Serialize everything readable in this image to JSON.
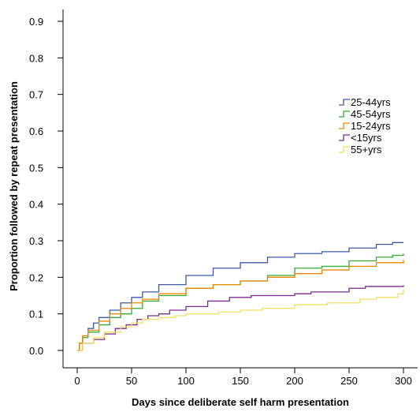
{
  "chart_data": {
    "type": "line",
    "step": true,
    "xlabel": "Days since deliberate self harm presentation",
    "ylabel": "Proportion followed by repeat presentation",
    "xlim": [
      0,
      300
    ],
    "ylim": [
      0,
      0.9
    ],
    "x_ticks": [
      0,
      50,
      100,
      150,
      200,
      250,
      300
    ],
    "y_ticks": [
      0.0,
      0.1,
      0.2,
      0.3,
      0.4,
      0.5,
      0.6,
      0.7,
      0.8,
      0.9
    ],
    "y_tick_labels": [
      "0.0",
      "0.1",
      "0.2",
      "0.3",
      "0.4",
      "0.5",
      "0.6",
      "0.7",
      "0.8",
      "0.9"
    ],
    "grid": false,
    "legend_position": "right",
    "series": [
      {
        "name": "25-44yrs",
        "color": "#3b5ba5",
        "x": [
          0,
          2,
          5,
          10,
          15,
          20,
          30,
          40,
          50,
          60,
          75,
          100,
          125,
          150,
          175,
          200,
          225,
          250,
          275,
          290,
          300
        ],
        "y": [
          0.0,
          0.02,
          0.04,
          0.06,
          0.075,
          0.09,
          0.11,
          0.13,
          0.145,
          0.16,
          0.18,
          0.205,
          0.225,
          0.24,
          0.255,
          0.265,
          0.27,
          0.28,
          0.29,
          0.295,
          0.295
        ]
      },
      {
        "name": "45-54yrs",
        "color": "#33aa33",
        "x": [
          0,
          2,
          5,
          10,
          20,
          30,
          40,
          50,
          60,
          75,
          100,
          125,
          150,
          175,
          200,
          225,
          250,
          275,
          290,
          300
        ],
        "y": [
          0.0,
          0.02,
          0.035,
          0.05,
          0.07,
          0.09,
          0.1,
          0.115,
          0.135,
          0.15,
          0.17,
          0.18,
          0.19,
          0.205,
          0.225,
          0.23,
          0.245,
          0.255,
          0.26,
          0.265
        ]
      },
      {
        "name": "15-24yrs",
        "color": "#ee8800",
        "x": [
          0,
          2,
          5,
          10,
          20,
          30,
          40,
          50,
          60,
          75,
          100,
          125,
          150,
          175,
          200,
          225,
          250,
          275,
          300
        ],
        "y": [
          0.0,
          0.02,
          0.04,
          0.055,
          0.08,
          0.1,
          0.115,
          0.13,
          0.14,
          0.155,
          0.17,
          0.18,
          0.19,
          0.2,
          0.21,
          0.22,
          0.23,
          0.24,
          0.248
        ]
      },
      {
        "name": "<15yrs",
        "color": "#7a2a8a",
        "x": [
          0,
          5,
          15,
          25,
          35,
          45,
          55,
          65,
          75,
          85,
          100,
          120,
          140,
          160,
          200,
          215,
          250,
          265,
          300
        ],
        "y": [
          0.0,
          0.02,
          0.03,
          0.045,
          0.06,
          0.07,
          0.085,
          0.095,
          0.1,
          0.11,
          0.12,
          0.135,
          0.145,
          0.15,
          0.155,
          0.16,
          0.17,
          0.175,
          0.178
        ]
      },
      {
        "name": "55+yrs",
        "color": "#f0e060",
        "x": [
          0,
          5,
          15,
          25,
          40,
          50,
          60,
          75,
          90,
          100,
          130,
          150,
          170,
          200,
          230,
          260,
          275,
          295,
          300
        ],
        "y": [
          0.0,
          0.02,
          0.035,
          0.05,
          0.065,
          0.075,
          0.085,
          0.09,
          0.095,
          0.1,
          0.105,
          0.11,
          0.115,
          0.125,
          0.13,
          0.14,
          0.145,
          0.155,
          0.168
        ]
      }
    ]
  }
}
